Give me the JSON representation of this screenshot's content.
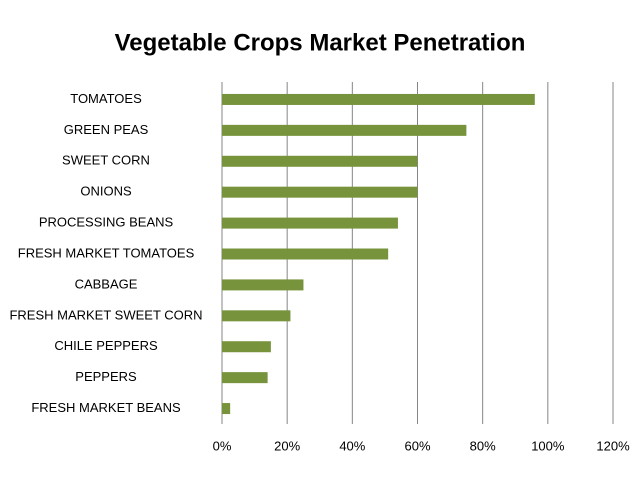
{
  "chart_data": {
    "type": "hbar",
    "title": "Vegetable  Crops Market Penetration",
    "categories": [
      "TOMATOES",
      "GREEN PEAS",
      "SWEET CORN",
      "ONIONS",
      "PROCESSING BEANS",
      "FRESH MARKET TOMATOES",
      "CABBAGE",
      "FRESH MARKET SWEET CORN",
      "CHILE PEPPERS",
      "PEPPERS",
      "FRESH MARKET BEANS"
    ],
    "values": [
      96,
      75,
      60,
      60,
      54,
      51,
      25,
      21,
      15,
      14,
      2.5
    ],
    "color": "#77933c",
    "xlim": [
      0,
      120
    ],
    "xticks": [
      {
        "value": 0,
        "label": "0%"
      },
      {
        "value": 20,
        "label": "20%"
      },
      {
        "value": 40,
        "label": "40%"
      },
      {
        "value": 60,
        "label": "60%"
      },
      {
        "value": 80,
        "label": "80%"
      },
      {
        "value": 100,
        "label": "100%"
      },
      {
        "value": 120,
        "label": "120%"
      }
    ],
    "grid": true
  }
}
